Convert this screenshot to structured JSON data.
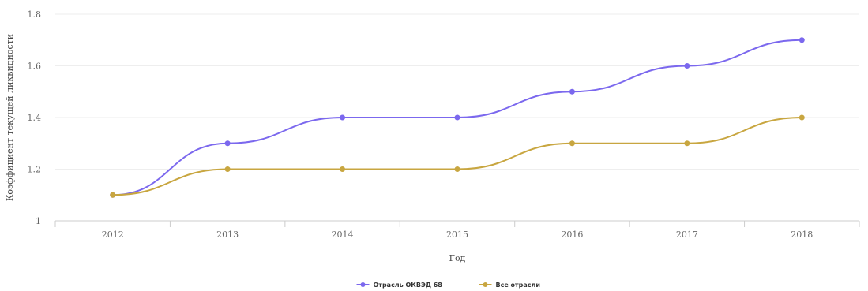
{
  "chart_data": {
    "type": "line",
    "title": "",
    "xlabel": "Год",
    "ylabel": "Коэффициент текущей ликвидности",
    "categories": [
      "2012",
      "2013",
      "2014",
      "2015",
      "2016",
      "2017",
      "2018"
    ],
    "series": [
      {
        "name": "Отрасль ОКВЭД 68",
        "color": "#7b68ee",
        "values": [
          1.1,
          1.3,
          1.4,
          1.4,
          1.5,
          1.6,
          1.7
        ]
      },
      {
        "name": "Все отрасли",
        "color": "#c8a640",
        "values": [
          1.1,
          1.2,
          1.2,
          1.2,
          1.3,
          1.3,
          1.4
        ]
      }
    ],
    "ylim": [
      1,
      1.8
    ],
    "yticks": [
      "1",
      "1.2",
      "1.4",
      "1.6",
      "1.8"
    ],
    "grid": true,
    "legend_position": "bottom-center"
  }
}
